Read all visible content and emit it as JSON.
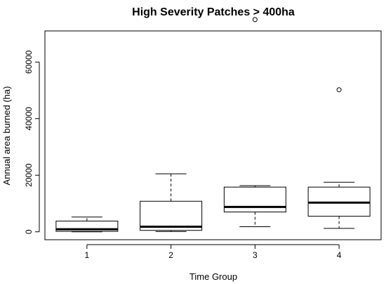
{
  "chart_data": {
    "type": "boxplot",
    "title": "High Severity Patches > 400ha",
    "xlabel": "Time Group",
    "ylabel": "Annual area burned (ha)",
    "categories": [
      "1",
      "2",
      "3",
      "4"
    ],
    "ylim": [
      -2800,
      71000
    ],
    "y_ticks": [
      0,
      20000,
      40000,
      60000
    ],
    "grid": false,
    "boxes": [
      {
        "category": "1",
        "whisker_low": 0,
        "q1": 150,
        "median": 900,
        "q3": 3800,
        "whisker_high": 5200,
        "outliers": []
      },
      {
        "category": "2",
        "whisker_low": 100,
        "q1": 500,
        "median": 1800,
        "q3": 10800,
        "whisker_high": 20500,
        "outliers": []
      },
      {
        "category": "3",
        "whisker_low": 1800,
        "q1": 7000,
        "median": 8800,
        "q3": 15800,
        "whisker_high": 16300,
        "outliers": [
          75000
        ]
      },
      {
        "category": "4",
        "whisker_low": 1200,
        "q1": 5500,
        "median": 10300,
        "q3": 15800,
        "whisker_high": 17500,
        "outliers": [
          50200
        ]
      }
    ]
  }
}
